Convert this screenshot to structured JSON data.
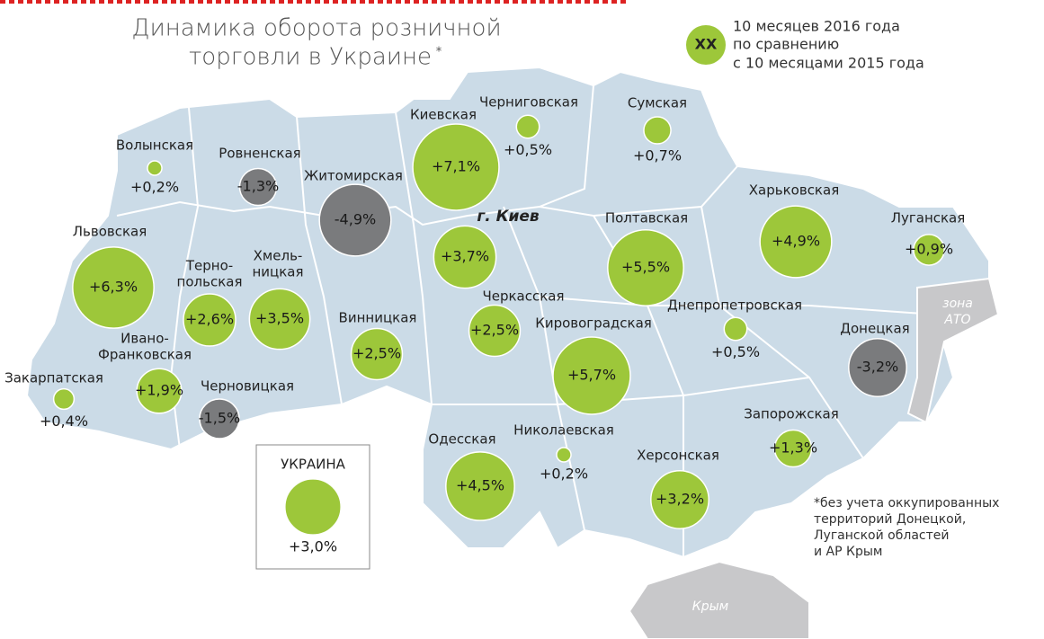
{
  "title": {
    "lines": [
      "Динамика оборота розничной",
      "торговли в Украине"
    ],
    "mark": "*"
  },
  "legend": {
    "symbol": "XX",
    "lines": [
      "10 месяцев 2016 года",
      "по сравнению",
      "с 10 месяцами 2015 года"
    ]
  },
  "positive_color": "#9dc73a",
  "negative_color": "#7a7b7d",
  "regions": [
    {
      "name": [
        "Волынская"
      ],
      "value": 0.2,
      "value_label": "+0,2%"
    },
    {
      "name": [
        "Ровненская"
      ],
      "value": -1.3,
      "value_label": "-1,3%"
    },
    {
      "name": [
        "Житомирская"
      ],
      "value": -4.9,
      "value_label": "-4,9%"
    },
    {
      "name": [
        "Киевская"
      ],
      "value": 7.1,
      "value_label": "+7,1%"
    },
    {
      "name": [
        "Черниговская"
      ],
      "value": 0.5,
      "value_label": "+0,5%"
    },
    {
      "name": [
        "Сумская"
      ],
      "value": 0.7,
      "value_label": "+0,7%"
    },
    {
      "name": [
        "г. Киев"
      ],
      "value": 3.7,
      "value_label": "+3,7%"
    },
    {
      "name": [
        "Полтавская"
      ],
      "value": 5.5,
      "value_label": "+5,5%"
    },
    {
      "name": [
        "Харьковская"
      ],
      "value": 4.9,
      "value_label": "+4,9%"
    },
    {
      "name": [
        "Луганская"
      ],
      "value": 0.9,
      "value_label": "+0,9%"
    },
    {
      "name": [
        "Львовская"
      ],
      "value": 6.3,
      "value_label": "+6,3%"
    },
    {
      "name": [
        "Терно-",
        "польская"
      ],
      "value": 2.6,
      "value_label": "+2,6%"
    },
    {
      "name": [
        "Хмель-",
        "ницкая"
      ],
      "value": 3.5,
      "value_label": "+3,5%"
    },
    {
      "name": [
        "Винницкая"
      ],
      "value": 2.5,
      "value_label": "+2,5%"
    },
    {
      "name": [
        "Черкасская"
      ],
      "value": 2.5,
      "value_label": "+2,5%"
    },
    {
      "name": [
        "Кировоградская"
      ],
      "value": 5.7,
      "value_label": "+5,7%"
    },
    {
      "name": [
        "Днепропетровская"
      ],
      "value": 0.5,
      "value_label": "+0,5%"
    },
    {
      "name": [
        "Донецкая"
      ],
      "value": -3.2,
      "value_label": "-3,2%"
    },
    {
      "name": [
        "Ивано-",
        "Франковская"
      ],
      "value": 1.9,
      "value_label": "+1,9%"
    },
    {
      "name": [
        "Закарпатская"
      ],
      "value": 0.4,
      "value_label": "+0,4%"
    },
    {
      "name": [
        "Черновицкая"
      ],
      "value": -1.5,
      "value_label": "-1,5%"
    },
    {
      "name": [
        "Одесская"
      ],
      "value": 4.5,
      "value_label": "+4,5%"
    },
    {
      "name": [
        "Николаевская"
      ],
      "value": 0.2,
      "value_label": "+0,2%"
    },
    {
      "name": [
        "Херсонская"
      ],
      "value": 3.2,
      "value_label": "+3,2%"
    },
    {
      "name": [
        "Запорожская"
      ],
      "value": 1.3,
      "value_label": "+1,3%"
    }
  ],
  "total": {
    "name": "УКРАИНА",
    "value": 3.0,
    "value_label": "+3,0%"
  },
  "zones": {
    "ato": [
      "зона",
      "АТО"
    ],
    "crimea": "Крым"
  },
  "footnote": [
    "*без учета оккупированных",
    "территорий Донецкой,",
    "Луганской областей",
    "и АР Крым"
  ]
}
